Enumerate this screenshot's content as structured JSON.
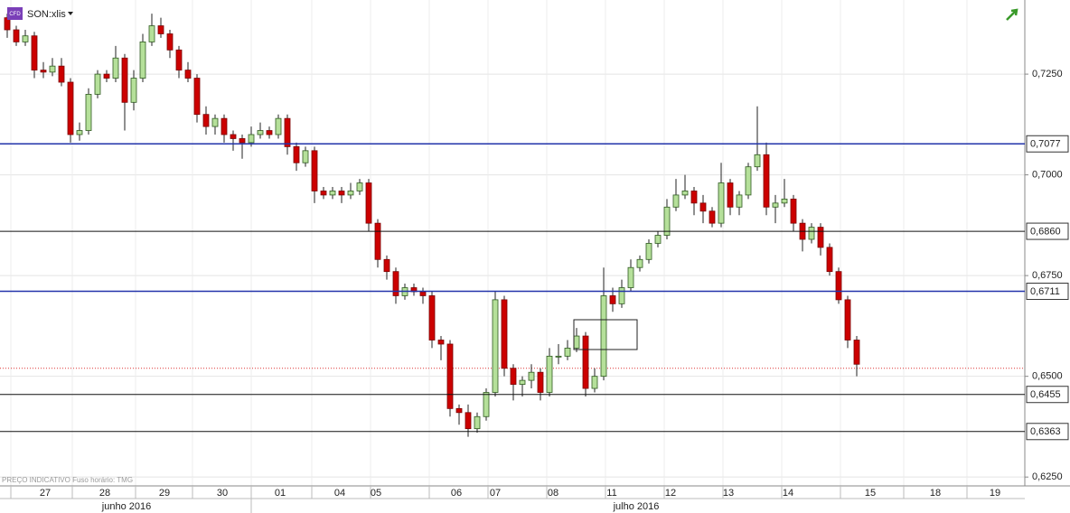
{
  "chart_data": {
    "type": "candlestick",
    "symbol": "SON:xlis",
    "badge": "CFD",
    "note": "PREÇO INDICATIVO   Fuso horário: TMG",
    "ylim": [
      0.6228,
      0.7434
    ],
    "yticks": [
      {
        "value": 0.725,
        "label": "0,7250"
      },
      {
        "value": 0.7,
        "label": "0,7000"
      },
      {
        "value": 0.675,
        "label": "0,6750"
      },
      {
        "value": 0.65,
        "label": "0,6500"
      },
      {
        "value": 0.625,
        "label": "0,6250"
      }
    ],
    "levels": [
      {
        "value": 0.7077,
        "label": "0,7077",
        "color": "#2233aa"
      },
      {
        "value": 0.686,
        "label": "0,6860",
        "color": "#111111"
      },
      {
        "value": 0.6711,
        "label": "0,6711",
        "color": "#2233aa"
      },
      {
        "value": 0.6455,
        "label": "0,6455",
        "color": "#111111"
      },
      {
        "value": 0.6363,
        "label": "0,6363",
        "color": "#111111"
      }
    ],
    "current_price": 0.652,
    "up_color": "#b5e09a",
    "down_color": "#cc0000",
    "days": [
      "27",
      "28",
      "29",
      "30",
      "01",
      "04",
      "05",
      "06",
      "07",
      "08",
      "11",
      "12",
      "13",
      "14",
      "15",
      "18",
      "19"
    ],
    "months": [
      "junho 2016",
      "julho 2016"
    ],
    "candles": [
      [
        0.739,
        0.74,
        0.734,
        0.736
      ],
      [
        0.736,
        0.737,
        0.732,
        0.733
      ],
      [
        0.733,
        0.736,
        0.732,
        0.7345
      ],
      [
        0.7345,
        0.7355,
        0.724,
        0.726
      ],
      [
        0.726,
        0.728,
        0.724,
        0.7255
      ],
      [
        0.7255,
        0.729,
        0.7245,
        0.727
      ],
      [
        0.727,
        0.729,
        0.722,
        0.723
      ],
      [
        0.723,
        0.724,
        0.708,
        0.71
      ],
      [
        0.71,
        0.713,
        0.7085,
        0.711
      ],
      [
        0.711,
        0.7215,
        0.71,
        0.72
      ],
      [
        0.72,
        0.726,
        0.719,
        0.725
      ],
      [
        0.725,
        0.726,
        0.723,
        0.724
      ],
      [
        0.724,
        0.732,
        0.723,
        0.729
      ],
      [
        0.729,
        0.73,
        0.711,
        0.718
      ],
      [
        0.718,
        0.726,
        0.716,
        0.724
      ],
      [
        0.724,
        0.735,
        0.723,
        0.733
      ],
      [
        0.733,
        0.74,
        0.732,
        0.737
      ],
      [
        0.737,
        0.739,
        0.734,
        0.735
      ],
      [
        0.735,
        0.736,
        0.729,
        0.731
      ],
      [
        0.731,
        0.732,
        0.724,
        0.726
      ],
      [
        0.726,
        0.728,
        0.723,
        0.724
      ],
      [
        0.724,
        0.725,
        0.713,
        0.715
      ],
      [
        0.715,
        0.717,
        0.71,
        0.712
      ],
      [
        0.712,
        0.715,
        0.71,
        0.714
      ],
      [
        0.714,
        0.715,
        0.708,
        0.71
      ],
      [
        0.71,
        0.711,
        0.706,
        0.709
      ],
      [
        0.709,
        0.71,
        0.704,
        0.708
      ],
      [
        0.708,
        0.712,
        0.707,
        0.71
      ],
      [
        0.71,
        0.713,
        0.709,
        0.711
      ],
      [
        0.711,
        0.712,
        0.709,
        0.71
      ],
      [
        0.71,
        0.715,
        0.709,
        0.714
      ],
      [
        0.714,
        0.715,
        0.705,
        0.707
      ],
      [
        0.707,
        0.708,
        0.701,
        0.703
      ],
      [
        0.703,
        0.707,
        0.702,
        0.706
      ],
      [
        0.706,
        0.707,
        0.693,
        0.696
      ],
      [
        0.696,
        0.697,
        0.694,
        0.695
      ],
      [
        0.695,
        0.697,
        0.694,
        0.696
      ],
      [
        0.696,
        0.697,
        0.693,
        0.695
      ],
      [
        0.695,
        0.698,
        0.694,
        0.696
      ],
      [
        0.696,
        0.699,
        0.695,
        0.698
      ],
      [
        0.698,
        0.699,
        0.686,
        0.688
      ],
      [
        0.688,
        0.689,
        0.677,
        0.679
      ],
      [
        0.679,
        0.68,
        0.674,
        0.676
      ],
      [
        0.676,
        0.677,
        0.668,
        0.67
      ],
      [
        0.67,
        0.673,
        0.669,
        0.672
      ],
      [
        0.672,
        0.673,
        0.67,
        0.671
      ],
      [
        0.671,
        0.672,
        0.668,
        0.67
      ],
      [
        0.67,
        0.671,
        0.657,
        0.659
      ],
      [
        0.659,
        0.66,
        0.654,
        0.658
      ],
      [
        0.658,
        0.659,
        0.64,
        0.642
      ],
      [
        0.642,
        0.643,
        0.638,
        0.641
      ],
      [
        0.641,
        0.643,
        0.635,
        0.637
      ],
      [
        0.637,
        0.641,
        0.636,
        0.64
      ],
      [
        0.64,
        0.647,
        0.639,
        0.646
      ],
      [
        0.646,
        0.671,
        0.645,
        0.669
      ],
      [
        0.669,
        0.67,
        0.65,
        0.652
      ],
      [
        0.652,
        0.653,
        0.644,
        0.648
      ],
      [
        0.648,
        0.65,
        0.645,
        0.649
      ],
      [
        0.649,
        0.653,
        0.647,
        0.651
      ],
      [
        0.651,
        0.652,
        0.644,
        0.646
      ],
      [
        0.646,
        0.657,
        0.645,
        0.655
      ],
      [
        0.655,
        0.658,
        0.653,
        0.655
      ],
      [
        0.655,
        0.659,
        0.654,
        0.657
      ],
      [
        0.657,
        0.662,
        0.656,
        0.66
      ],
      [
        0.66,
        0.661,
        0.645,
        0.647
      ],
      [
        0.647,
        0.652,
        0.646,
        0.65
      ],
      [
        0.65,
        0.677,
        0.649,
        0.67
      ],
      [
        0.67,
        0.672,
        0.666,
        0.668
      ],
      [
        0.668,
        0.674,
        0.667,
        0.672
      ],
      [
        0.672,
        0.679,
        0.671,
        0.677
      ],
      [
        0.677,
        0.68,
        0.676,
        0.679
      ],
      [
        0.679,
        0.684,
        0.678,
        0.683
      ],
      [
        0.683,
        0.686,
        0.682,
        0.685
      ],
      [
        0.685,
        0.694,
        0.684,
        0.692
      ],
      [
        0.692,
        0.699,
        0.691,
        0.695
      ],
      [
        0.695,
        0.7,
        0.694,
        0.696
      ],
      [
        0.696,
        0.697,
        0.69,
        0.693
      ],
      [
        0.693,
        0.695,
        0.688,
        0.691
      ],
      [
        0.691,
        0.692,
        0.687,
        0.688
      ],
      [
        0.688,
        0.703,
        0.687,
        0.698
      ],
      [
        0.698,
        0.699,
        0.69,
        0.692
      ],
      [
        0.692,
        0.696,
        0.69,
        0.695
      ],
      [
        0.695,
        0.703,
        0.694,
        0.702
      ],
      [
        0.702,
        0.717,
        0.701,
        0.705
      ],
      [
        0.705,
        0.708,
        0.69,
        0.692
      ],
      [
        0.692,
        0.695,
        0.688,
        0.693
      ],
      [
        0.693,
        0.699,
        0.692,
        0.694
      ],
      [
        0.694,
        0.695,
        0.686,
        0.688
      ],
      [
        0.688,
        0.689,
        0.681,
        0.684
      ],
      [
        0.684,
        0.688,
        0.683,
        0.687
      ],
      [
        0.687,
        0.688,
        0.68,
        0.682
      ],
      [
        0.682,
        0.683,
        0.675,
        0.676
      ],
      [
        0.676,
        0.677,
        0.668,
        0.669
      ],
      [
        0.669,
        0.67,
        0.657,
        0.659
      ],
      [
        0.659,
        0.66,
        0.65,
        0.653
      ]
    ]
  }
}
